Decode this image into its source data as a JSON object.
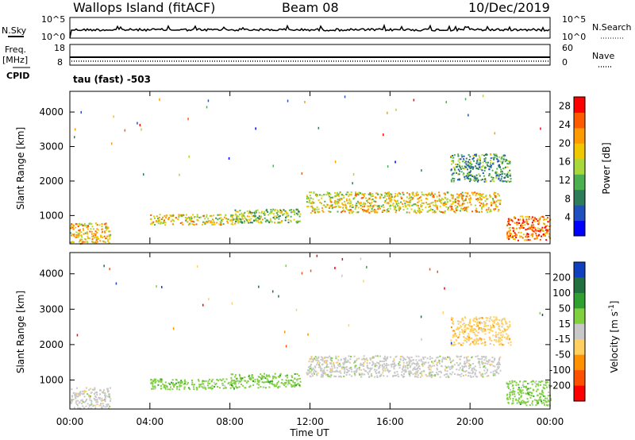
{
  "header": {
    "station": "Wallops Island (fitACF)",
    "beam": "Beam 08",
    "date": "10/Dec/2019"
  },
  "top_panels": {
    "nsky_label": "N.Sky",
    "nsky_ticks": [
      "10^5",
      "10^0"
    ],
    "nsearch_label": "N.Search",
    "nsearch_ticks": [
      "10^5",
      "10^0"
    ],
    "freq_label": "Freq.",
    "freq_unit": "[MHz]",
    "freq_ticks": [
      "18",
      "8"
    ],
    "cpid_label": "CPID",
    "nave_label": "Nave",
    "nave_ticks": [
      "60",
      "0"
    ],
    "cpid_text": "tau (fast) -503"
  },
  "colors": {
    "power_scale": [
      "#0000ff",
      "#2050c0",
      "#2e7d5a",
      "#4caf50",
      "#a8d83c",
      "#f0c800",
      "#ff9a00",
      "#ff5a00",
      "#ff0000"
    ],
    "velocity_scale": [
      "#1040c0",
      "#207040",
      "#30a030",
      "#80d040",
      "#c8c8c8",
      "#ffd060",
      "#ff9000",
      "#ff5000",
      "#ff0000"
    ]
  },
  "chart_data": [
    {
      "type": "heatmap",
      "panel": "power",
      "ylabel": "Slant Range [km]",
      "yticks": [
        1000,
        2000,
        3000,
        4000
      ],
      "ylim": [
        180,
        4600
      ],
      "xticks": [
        "00:00",
        "04:00",
        "08:00",
        "12:00",
        "16:00",
        "20:00",
        "00:00"
      ],
      "xlim_hours": [
        0,
        24
      ],
      "colorbar_label": "Power [dB]",
      "colorbar_ticks": [
        4,
        8,
        12,
        16,
        20,
        24,
        28
      ],
      "colorbar_range": [
        0,
        30
      ],
      "features": [
        {
          "t_start": 0.0,
          "t_end": 2.0,
          "range_km": [
            200,
            800
          ],
          "power_db": 20
        },
        {
          "t_start": 4.0,
          "t_end": 8.3,
          "range_km": [
            750,
            1050
          ],
          "power_db": 18
        },
        {
          "t_start": 8.0,
          "t_end": 11.5,
          "range_km": [
            800,
            1200
          ],
          "power_db": 14
        },
        {
          "t_start": 11.8,
          "t_end": 18.0,
          "range_km": [
            1100,
            1700
          ],
          "power_db": 18
        },
        {
          "t_start": 18.0,
          "t_end": 21.5,
          "range_km": [
            1100,
            1700
          ],
          "power_db": 20
        },
        {
          "t_start": 19.0,
          "t_end": 22.0,
          "range_km": [
            2000,
            2800
          ],
          "power_db": 10
        },
        {
          "t_start": 21.8,
          "t_end": 24.0,
          "range_km": [
            300,
            1000
          ],
          "power_db": 24
        }
      ]
    },
    {
      "type": "heatmap",
      "panel": "velocity",
      "ylabel": "Slant Range [km]",
      "yticks": [
        1000,
        2000,
        3000,
        4000
      ],
      "ylim": [
        180,
        4600
      ],
      "xticks": [
        "00:00",
        "04:00",
        "08:00",
        "12:00",
        "16:00",
        "20:00",
        "00:00"
      ],
      "xlim_hours": [
        0,
        24
      ],
      "xlabel": "Time UT",
      "colorbar_label": "Velocity [m s^-1]",
      "colorbar_ticks": [
        200,
        100,
        50,
        15,
        -15,
        -50,
        -100,
        -200
      ],
      "features": [
        {
          "t_start": 0.0,
          "t_end": 2.0,
          "range_km": [
            200,
            800
          ],
          "velocity": 0
        },
        {
          "t_start": 4.0,
          "t_end": 8.3,
          "range_km": [
            750,
            1050
          ],
          "velocity": 40
        },
        {
          "t_start": 8.0,
          "t_end": 11.5,
          "range_km": [
            800,
            1200
          ],
          "velocity": 30
        },
        {
          "t_start": 11.8,
          "t_end": 21.5,
          "range_km": [
            1100,
            1700
          ],
          "velocity": 0
        },
        {
          "t_start": 19.0,
          "t_end": 22.0,
          "range_km": [
            2000,
            2800
          ],
          "velocity": -20
        },
        {
          "t_start": 21.8,
          "t_end": 24.0,
          "range_km": [
            300,
            1000
          ],
          "velocity": 40
        }
      ]
    }
  ]
}
